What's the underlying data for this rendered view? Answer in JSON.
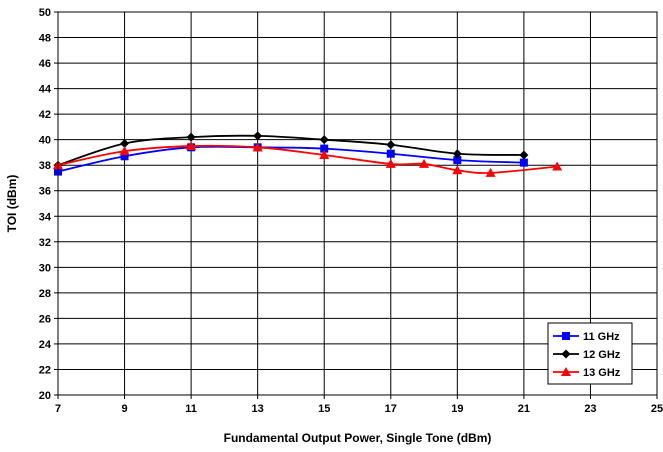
{
  "chart_data": {
    "type": "line",
    "title": "",
    "xlabel": "Fundamental Output Power, Single Tone (dBm)",
    "ylabel": "TOI (dBm)",
    "xlim": [
      7,
      25
    ],
    "ylim": [
      20,
      50
    ],
    "xticks": [
      "7",
      "9",
      "11",
      "13",
      "15",
      "17",
      "19",
      "21",
      "23",
      "25"
    ],
    "yticks": [
      "20",
      "22",
      "24",
      "26",
      "28",
      "30",
      "32",
      "34",
      "36",
      "38",
      "40",
      "42",
      "44",
      "46",
      "48",
      "50"
    ],
    "grid": true,
    "legend_position": "bottom-right",
    "series": [
      {
        "name": "11 GHz",
        "color": "#0000ff",
        "marker": "square",
        "x": [
          7,
          9,
          11,
          13,
          15,
          17,
          19,
          21
        ],
        "y": [
          37.5,
          38.7,
          39.4,
          39.4,
          39.3,
          38.9,
          38.4,
          38.2
        ]
      },
      {
        "name": "12 GHz",
        "color": "#000000",
        "marker": "diamond",
        "x": [
          7,
          9,
          11,
          13,
          15,
          17,
          19,
          21
        ],
        "y": [
          38.0,
          39.7,
          40.2,
          40.3,
          40.0,
          39.6,
          38.9,
          38.8
        ]
      },
      {
        "name": "13 GHz",
        "color": "#ff0000",
        "marker": "triangle",
        "x": [
          7,
          9,
          11,
          13,
          15,
          17,
          18,
          19,
          20,
          22
        ],
        "y": [
          38.0,
          39.1,
          39.5,
          39.4,
          38.8,
          38.1,
          38.1,
          37.6,
          37.4,
          37.9
        ]
      }
    ]
  }
}
